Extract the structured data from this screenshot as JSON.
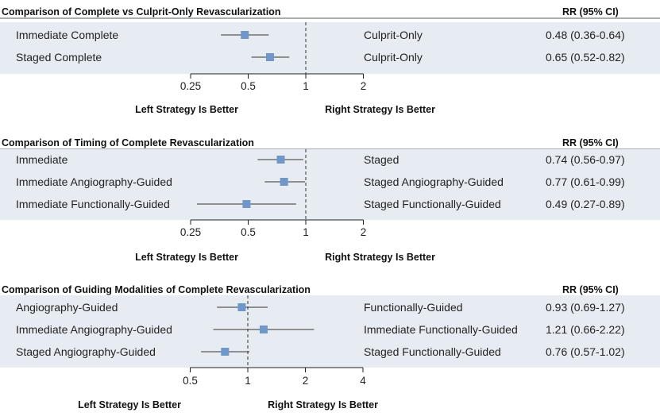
{
  "chart_data": [
    {
      "type": "forest",
      "title": "Comparison of Complete vs Culprit-Only Revascularization",
      "rr_header": "RR (95% CI)",
      "scale": "log",
      "ticks": [
        0.25,
        0.5,
        1,
        2
      ],
      "tick_labels": [
        "0.25",
        "0.5",
        "1",
        "2"
      ],
      "left_footer": "Left Strategy Is Better",
      "right_footer": "Right Strategy Is Better",
      "rows": [
        {
          "left": "Immediate Complete",
          "right": "Culprit-Only",
          "rr": 0.48,
          "lo": 0.36,
          "hi": 0.64,
          "text": "0.48 (0.36-0.64)"
        },
        {
          "left": "Staged Complete",
          "right": "Culprit-Only",
          "rr": 0.65,
          "lo": 0.52,
          "hi": 0.82,
          "text": "0.65 (0.52-0.82)"
        }
      ]
    },
    {
      "type": "forest",
      "title": "Comparison of Timing of Complete Revascularization",
      "rr_header": "RR (95% CI)",
      "scale": "log",
      "ticks": [
        0.25,
        0.5,
        1,
        2
      ],
      "tick_labels": [
        "0.25",
        "0.5",
        "1",
        "2"
      ],
      "left_footer": "Left Strategy Is Better",
      "right_footer": "Right Strategy Is Better",
      "rows": [
        {
          "left": "Immediate",
          "right": "Staged",
          "rr": 0.74,
          "lo": 0.56,
          "hi": 0.97,
          "text": "0.74 (0.56-0.97)"
        },
        {
          "left": "Immediate Angiography-Guided",
          "right": "Staged Angiography-Guided",
          "rr": 0.77,
          "lo": 0.61,
          "hi": 0.99,
          "text": "0.77 (0.61-0.99)"
        },
        {
          "left": "Immediate Functionally-Guided",
          "right": "Staged Functionally-Guided",
          "rr": 0.49,
          "lo": 0.27,
          "hi": 0.89,
          "text": "0.49 (0.27-0.89)"
        }
      ]
    },
    {
      "type": "forest",
      "title": "Comparison of Guiding Modalities of Complete Revascularization",
      "rr_header": "RR (95% CI)",
      "scale": "log",
      "ticks": [
        0.5,
        1,
        2,
        4
      ],
      "tick_labels": [
        "0.5",
        "1",
        "2",
        "4"
      ],
      "left_footer": "Left Strategy Is Better",
      "right_footer": "Right Strategy Is Better",
      "rows": [
        {
          "left": "Angiography-Guided",
          "right": "Functionally-Guided",
          "rr": 0.93,
          "lo": 0.69,
          "hi": 1.27,
          "text": "0.93 (0.69-1.27)"
        },
        {
          "left": "Immediate Angiography-Guided",
          "right": "Immediate Functionally-Guided",
          "rr": 1.21,
          "lo": 0.66,
          "hi": 2.22,
          "text": "1.21 (0.66-2.22)"
        },
        {
          "left": "Staged Angiography-Guided",
          "right": "Staged Functionally-Guided",
          "rr": 0.76,
          "lo": 0.57,
          "hi": 1.02,
          "text": "0.76 (0.57-1.02)"
        }
      ]
    }
  ],
  "colors": {
    "panel_bg": "#e7ecf3",
    "marker": "#6f97c8",
    "rule": "#222222"
  }
}
